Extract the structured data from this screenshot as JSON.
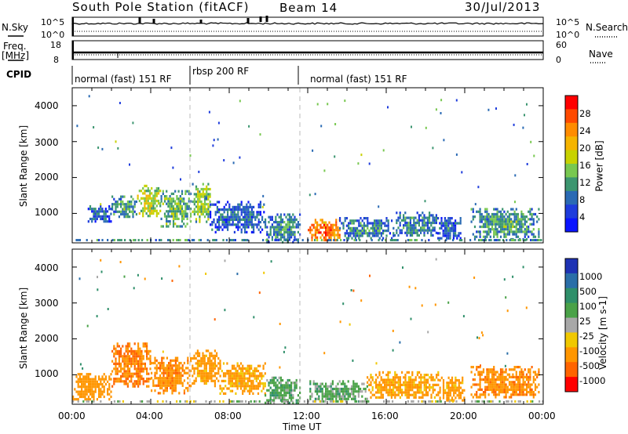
{
  "header": {
    "station": "South Pole Station (fitACF)",
    "beam": "Beam 14",
    "date": "30/Jul/2013"
  },
  "panels": {
    "nsky": {
      "label": "N.Sky",
      "left_ticks": [
        "10^5",
        "10^0"
      ],
      "right_ticks": [
        "10^5",
        "10^0"
      ],
      "right_label": "N.Search"
    },
    "freq": {
      "label_top": "Freq.",
      "label_unit": "[MHz]",
      "left_ticks": [
        "18",
        "8"
      ],
      "right_ticks": [
        "60",
        "0"
      ],
      "right_label": "Nave"
    },
    "cpid": {
      "label": "CPID",
      "segments": [
        "normal (fast) 151 RF",
        "rbsp 200 RF",
        "normal (fast) 151 RF"
      ]
    }
  },
  "power_colorbar": {
    "title": "Power [dB]",
    "ticks": [
      "28",
      "24",
      "20",
      "16",
      "12",
      "8",
      "4"
    ],
    "colors": [
      "#ff0000",
      "#ff4a00",
      "#ff8c00",
      "#f5b400",
      "#c8d200",
      "#78c850",
      "#3c9670",
      "#2a6ab4",
      "#1e3cdc",
      "#0a14ff"
    ]
  },
  "velocity_colorbar": {
    "title": "Velocity [m s-1]",
    "ticks": [
      "1000",
      "500",
      "100",
      "25",
      "-25",
      "-100",
      "-500",
      "-1000"
    ],
    "colors": [
      "#1e32b4",
      "#2a6ea8",
      "#2f8f6a",
      "#4aa248",
      "#a8a8a8",
      "#f0c800",
      "#ff9600",
      "#ff6400",
      "#ff0000"
    ]
  },
  "chart_data": [
    {
      "type": "heatmap",
      "title": "Power",
      "xlabel": "Time UT",
      "ylabel": "Slant Range [km]",
      "xticks": [
        "00:00",
        "04:00",
        "08:00",
        "12:00",
        "16:00",
        "20:00",
        "00:00"
      ],
      "yticks": [
        "1000",
        "2000",
        "3000",
        "4000"
      ],
      "xlim": [
        0,
        24
      ],
      "ylim": [
        180,
        4500
      ],
      "cpid_boundaries_ut": [
        6.0,
        11.6
      ],
      "blobs": [
        {
          "t0": 0.7,
          "t1": 2.0,
          "r0": 750,
          "r1": 1300,
          "value": 10
        },
        {
          "t0": 2.0,
          "t1": 3.3,
          "r0": 900,
          "r1": 1500,
          "value": 14
        },
        {
          "t0": 3.3,
          "t1": 4.5,
          "r0": 950,
          "r1": 1800,
          "value": 20
        },
        {
          "t0": 4.5,
          "t1": 6.0,
          "r0": 650,
          "r1": 1650,
          "value": 16
        },
        {
          "t0": 6.1,
          "t1": 7.0,
          "r0": 800,
          "r1": 1850,
          "value": 18
        },
        {
          "t0": 7.0,
          "t1": 9.8,
          "r0": 500,
          "r1": 1350,
          "value": 10
        },
        {
          "t0": 9.8,
          "t1": 11.6,
          "r0": 200,
          "r1": 1000,
          "value": 12
        },
        {
          "t0": 12.0,
          "t1": 13.6,
          "r0": 250,
          "r1": 850,
          "value": 28
        },
        {
          "t0": 13.6,
          "t1": 16.4,
          "r0": 300,
          "r1": 900,
          "value": 12
        },
        {
          "t0": 16.4,
          "t1": 18.6,
          "r0": 400,
          "r1": 1050,
          "value": 12
        },
        {
          "t0": 18.6,
          "t1": 19.8,
          "r0": 300,
          "r1": 900,
          "value": 10
        },
        {
          "t0": 20.3,
          "t1": 23.8,
          "r0": 300,
          "r1": 1150,
          "value": 14
        }
      ]
    },
    {
      "type": "heatmap",
      "title": "Velocity",
      "xlabel": "Time UT",
      "ylabel": "Slant Range [km]",
      "xticks": [
        "00:00",
        "04:00",
        "08:00",
        "12:00",
        "16:00",
        "20:00",
        "00:00"
      ],
      "yticks": [
        "1000",
        "2000",
        "3000",
        "4000"
      ],
      "xlim": [
        0,
        24
      ],
      "ylim": [
        180,
        4500
      ],
      "cpid_boundaries_ut": [
        6.0,
        11.6
      ],
      "blobs": [
        {
          "t0": 0.0,
          "t1": 2.0,
          "r0": 300,
          "r1": 1050,
          "value": -300
        },
        {
          "t0": 2.0,
          "t1": 4.0,
          "r0": 700,
          "r1": 1900,
          "value": -500
        },
        {
          "t0": 4.0,
          "t1": 6.0,
          "r0": 500,
          "r1": 1500,
          "value": -400
        },
        {
          "t0": 6.0,
          "t1": 7.5,
          "r0": 700,
          "r1": 1700,
          "value": -200
        },
        {
          "t0": 7.5,
          "t1": 9.8,
          "r0": 500,
          "r1": 1350,
          "value": -150
        },
        {
          "t0": 9.8,
          "t1": 11.6,
          "r0": 200,
          "r1": 950,
          "value": 60
        },
        {
          "t0": 12.0,
          "t1": 15.0,
          "r0": 250,
          "r1": 850,
          "value": 60
        },
        {
          "t0": 15.0,
          "t1": 18.7,
          "r0": 350,
          "r1": 1100,
          "value": -150
        },
        {
          "t0": 18.7,
          "t1": 20.0,
          "r0": 300,
          "r1": 950,
          "value": -200
        },
        {
          "t0": 20.3,
          "t1": 23.8,
          "r0": 350,
          "r1": 1250,
          "value": -400
        }
      ]
    }
  ]
}
